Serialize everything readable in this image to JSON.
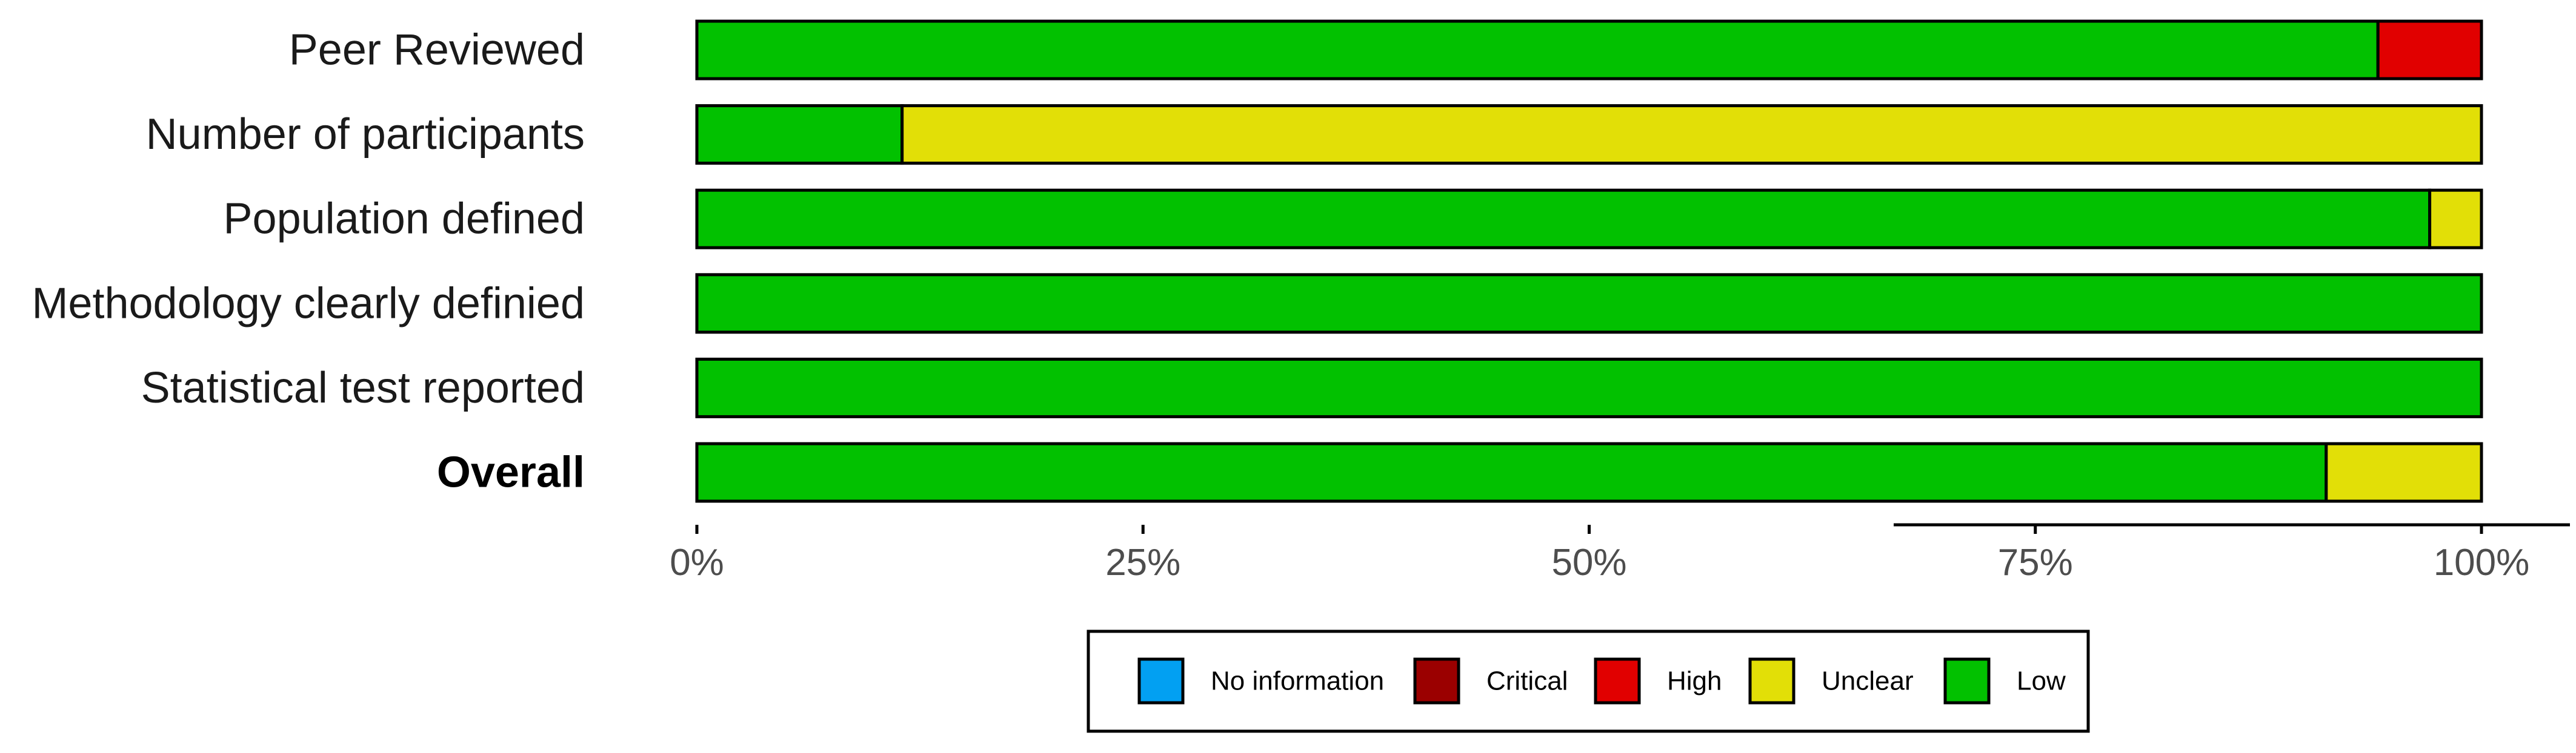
{
  "chart_data": {
    "type": "bar",
    "stacked": true,
    "orientation": "horizontal",
    "categories": [
      "Peer Reviewed",
      "Number of participants",
      "Population defined",
      "Methodology clearly definied",
      "Statistical test reported",
      "Overall"
    ],
    "bold_categories": [
      "Overall"
    ],
    "series": [
      {
        "name": "Low",
        "color": "#02C100",
        "values": [
          94.2,
          11.5,
          97.1,
          100,
          100,
          91.3
        ]
      },
      {
        "name": "Unclear",
        "color": "#E2DF07",
        "values": [
          0,
          88.5,
          2.9,
          0,
          0,
          8.7
        ]
      },
      {
        "name": "High",
        "color": "#E10000",
        "values": [
          5.8,
          0,
          0,
          0,
          0,
          0
        ]
      },
      {
        "name": "Critical",
        "color": "#9B0000",
        "values": [
          0,
          0,
          0,
          0,
          0,
          0
        ]
      },
      {
        "name": "No information",
        "color": "#02A0F2",
        "values": [
          0,
          0,
          0,
          0,
          0,
          0
        ]
      }
    ],
    "xlim": [
      0,
      100
    ],
    "x_ticks": [
      0,
      25,
      50,
      75,
      100
    ],
    "x_tick_labels": [
      "0%",
      "25%",
      "50%",
      "75%",
      "100%"
    ],
    "xlabel": "",
    "ylabel": "",
    "grid": false,
    "legend": {
      "position": "bottom",
      "order": [
        "No information",
        "Critical",
        "High",
        "Unclear",
        "Low"
      ]
    }
  }
}
